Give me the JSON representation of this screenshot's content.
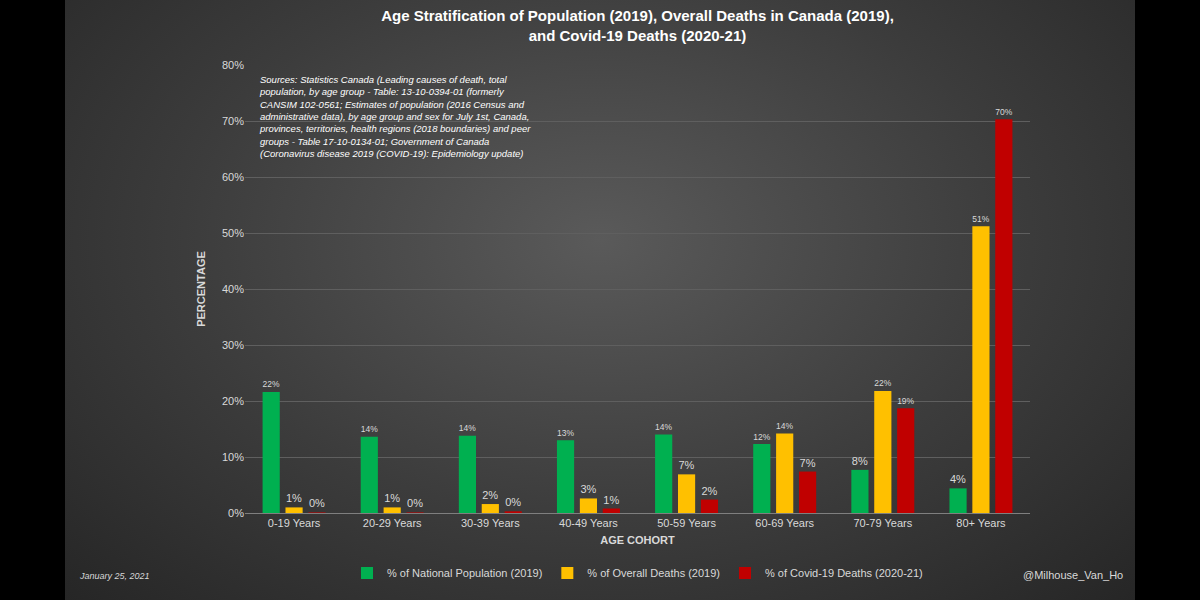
{
  "chart_data": {
    "type": "bar",
    "title": "Age Stratification of Population (2019), Overall Deaths in Canada (2019),\nand Covid-19 Deaths (2020-21)",
    "x_label": "AGE COHORT",
    "y_label": "PERCENTAGE",
    "categories": [
      "0-19 Years",
      "20-29 Years",
      "30-39 Years",
      "40-49 Years",
      "50-59 Years",
      "60-69 Years",
      "70-79 Years",
      "80+ Years"
    ],
    "series": [
      {
        "name": "% of National Population (2019)",
        "color": "#00b050",
        "values": [
          21.6,
          13.6,
          13.8,
          13.0,
          14.0,
          12.3,
          7.7,
          4.4
        ],
        "value_labels": [
          "22%",
          "14%",
          "14%",
          "13%",
          "14%",
          "12%",
          "8%",
          "4%"
        ]
      },
      {
        "name": "% of Overall Deaths (2019)",
        "color": "#ffc000",
        "values": [
          1.0,
          1.0,
          1.6,
          2.6,
          6.9,
          14.2,
          21.8,
          51.2
        ],
        "value_labels": [
          "1%",
          "1%",
          "2%",
          "3%",
          "7%",
          "14%",
          "22%",
          "51%"
        ]
      },
      {
        "name": "% of Covid-19 Deaths (2020-21)",
        "color": "#c00000",
        "values": [
          0.1,
          0.1,
          0.3,
          0.8,
          2.4,
          7.4,
          18.7,
          70.3
        ],
        "value_labels": [
          "0%",
          "0%",
          "0%",
          "1%",
          "2%",
          "7%",
          "19%",
          "70%"
        ]
      }
    ],
    "ylim": [
      0,
      80
    ],
    "yticks": [
      {
        "value": 0,
        "label": "0%"
      },
      {
        "value": 10,
        "label": "10%"
      },
      {
        "value": 20,
        "label": "20%"
      },
      {
        "value": 30,
        "label": "30%"
      },
      {
        "value": 40,
        "label": "40%"
      },
      {
        "value": 50,
        "label": "50%"
      },
      {
        "value": 60,
        "label": "60%"
      },
      {
        "value": 70,
        "label": "70%"
      },
      {
        "value": 80,
        "label": "80%"
      }
    ],
    "grid": true,
    "legend": "bottom",
    "data_labels": true,
    "annotations": {
      "source": [
        "Sources: Statistics Canada (Leading causes of death, total",
        "population, by age group - Table: 13-10-0394-01 (formerly",
        "CANSIM 102-0561; Estimates of population (2016 Census and",
        "administrative data), by age group and sex for July 1st, Canada,",
        "provinces, territories, health regions (2018 boundaries) and peer",
        "groups - Table 17-10-0134-01; Government of Canada",
        "(Coronavirus disease 2019 (COVID-19): Epidemiology update)"
      ],
      "date": "January 25, 2021",
      "credit": "@Milhouse_Van_Ho"
    }
  }
}
